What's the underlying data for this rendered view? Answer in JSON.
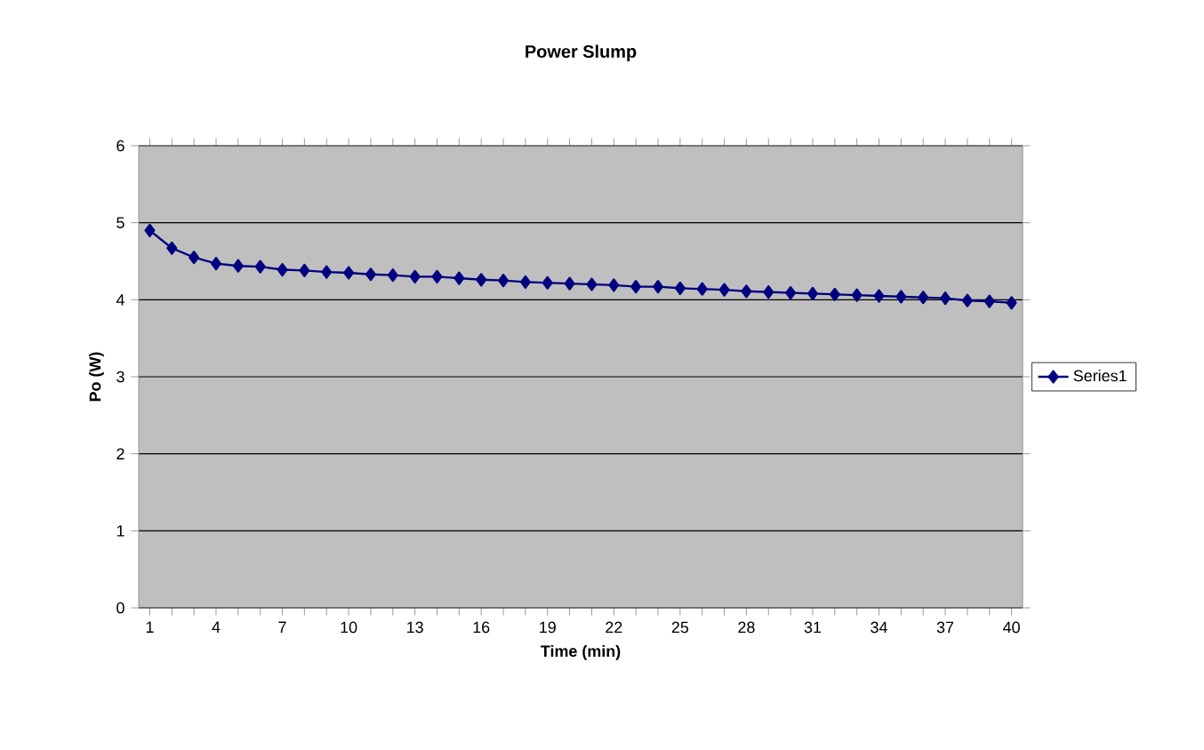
{
  "chart_data": {
    "type": "line",
    "title": "Power Slump",
    "xlabel": "Time (min)",
    "ylabel": "Po (W)",
    "categories": [
      "1",
      null,
      null,
      "4",
      null,
      null,
      "7",
      null,
      null,
      "10",
      null,
      null,
      "13",
      null,
      null,
      "16",
      null,
      null,
      "19",
      null,
      null,
      "22",
      null,
      null,
      "25",
      null,
      null,
      "28",
      null,
      null,
      "31",
      null,
      null,
      "34",
      null,
      null,
      "37",
      null,
      null,
      "40"
    ],
    "series": [
      {
        "name": "Series1",
        "color": "#000080",
        "values": [
          4.9,
          4.67,
          4.55,
          4.47,
          4.44,
          4.43,
          4.39,
          4.38,
          4.36,
          4.35,
          4.33,
          4.32,
          4.3,
          4.3,
          4.28,
          4.26,
          4.25,
          4.23,
          4.22,
          4.21,
          4.2,
          4.19,
          4.17,
          4.17,
          4.15,
          4.14,
          4.13,
          4.11,
          4.1,
          4.09,
          4.08,
          4.07,
          4.06,
          4.05,
          4.04,
          4.03,
          4.02,
          3.99,
          3.98,
          3.96
        ]
      }
    ],
    "ylim": [
      0,
      6
    ],
    "yticks": [
      0,
      1,
      2,
      3,
      4,
      5,
      6
    ],
    "grid": "y",
    "legend": "right",
    "marker": "diamond",
    "line_style": "solid"
  }
}
